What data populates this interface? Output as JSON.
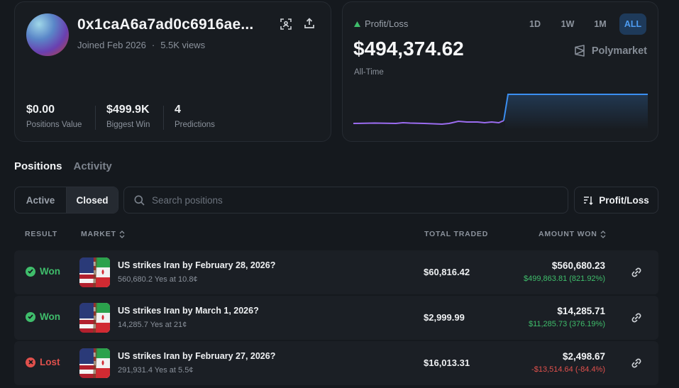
{
  "profile": {
    "address": "0x1caA6a7ad0c6916ae...",
    "joined": "Joined Feb 2026",
    "views": "5.5K views",
    "stats": [
      {
        "value": "$0.00",
        "label": "Positions Value"
      },
      {
        "value": "$499.9K",
        "label": "Biggest Win"
      },
      {
        "value": "4",
        "label": "Predictions"
      }
    ]
  },
  "pnl": {
    "label": "Profit/Loss",
    "value": "$494,374.62",
    "period_label": "All-Time",
    "ranges": [
      "1D",
      "1W",
      "1M",
      "ALL"
    ],
    "active_range": "ALL",
    "brand": "Polymarket",
    "colors": {
      "up": "#3fbd6b",
      "line_before": "#9b6cf0",
      "line_after": "#3b8ff2"
    }
  },
  "tabs": {
    "positions": "Positions",
    "activity": "Activity"
  },
  "filter": {
    "active": "Active",
    "closed": "Closed",
    "selected": "Closed"
  },
  "search": {
    "placeholder": "Search positions"
  },
  "sort": {
    "label": "Profit/Loss"
  },
  "table": {
    "headers": {
      "result": "RESULT",
      "market": "MARKET",
      "total_traded": "TOTAL TRADED",
      "amount_won": "AMOUNT WON"
    },
    "rows": [
      {
        "result": "Won",
        "title": "US strikes Iran by February 28, 2026?",
        "subtitle": "560,680.2 Yes at 10.8¢",
        "traded": "$60,816.42",
        "amount": "$560,680.23",
        "gain": "$499,863.81 (821.92%)",
        "gain_positive": true
      },
      {
        "result": "Won",
        "title": "US strikes Iran by March 1, 2026?",
        "subtitle": "14,285.7 Yes at 21¢",
        "traded": "$2,999.99",
        "amount": "$14,285.71",
        "gain": "$11,285.73 (376.19%)",
        "gain_positive": true
      },
      {
        "result": "Lost",
        "title": "US strikes Iran by February 27, 2026?",
        "subtitle": "291,931.4 Yes at 5.5¢",
        "traded": "$16,013.31",
        "amount": "$2,498.67",
        "gain": "-$13,514.64 (-84.4%)",
        "gain_positive": false
      }
    ]
  }
}
